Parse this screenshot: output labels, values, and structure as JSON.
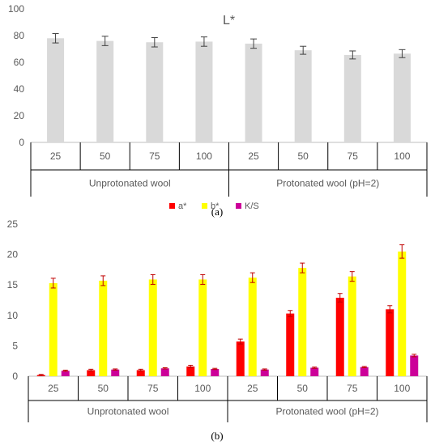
{
  "chart_data": [
    {
      "type": "bar",
      "title": "L*",
      "caption": "(a)",
      "categories": [
        "25",
        "50",
        "75",
        "100",
        "25",
        "50",
        "75",
        "100"
      ],
      "groups": [
        {
          "label": "Unprotonated wool",
          "count": 4
        },
        {
          "label": "Protonated wool (pH=2)",
          "count": 4
        }
      ],
      "series": [
        {
          "color": "#d9d9d9",
          "values": [
            78,
            76,
            75,
            75.5,
            74,
            69,
            65.5,
            66.5
          ],
          "errors": [
            3.5,
            3.5,
            3.5,
            3.5,
            3.5,
            3,
            3,
            3
          ]
        }
      ],
      "ylim": [
        0,
        100
      ],
      "yticks": [
        0,
        20,
        40,
        60,
        80,
        100
      ],
      "grid": false,
      "error_bar_color": "#404040"
    },
    {
      "type": "bar",
      "title": "",
      "caption": "(b)",
      "categories": [
        "25",
        "50",
        "75",
        "100",
        "25",
        "50",
        "75",
        "100"
      ],
      "groups": [
        {
          "label": "Unprotonated wool",
          "count": 4
        },
        {
          "label": "Protonated wool (pH=2)",
          "count": 4
        }
      ],
      "series": [
        {
          "name": "a*",
          "color": "#ff0000",
          "values": [
            0.2,
            1.0,
            1.0,
            1.6,
            5.7,
            10.3,
            12.9,
            11.0
          ],
          "errors": [
            0.1,
            0.15,
            0.15,
            0.2,
            0.4,
            0.5,
            0.7,
            0.6
          ]
        },
        {
          "name": "b*",
          "color": "#ffff00",
          "values": [
            15.3,
            15.7,
            15.9,
            15.9,
            16.2,
            17.8,
            16.4,
            20.5
          ],
          "errors": [
            0.8,
            0.8,
            0.8,
            0.8,
            0.8,
            0.8,
            0.8,
            1.1
          ]
        },
        {
          "name": "K/S",
          "color": "#cc0099",
          "values": [
            0.9,
            1.1,
            1.3,
            1.2,
            1.1,
            1.4,
            1.5,
            3.4
          ],
          "errors": [
            0.1,
            0.1,
            0.1,
            0.1,
            0.1,
            0.1,
            0.1,
            0.2
          ]
        }
      ],
      "ylim": [
        0,
        25
      ],
      "yticks": [
        0,
        5,
        10,
        15,
        20,
        25
      ],
      "grid": false,
      "legend": "top-center",
      "error_bar_color": "#c00000"
    }
  ]
}
